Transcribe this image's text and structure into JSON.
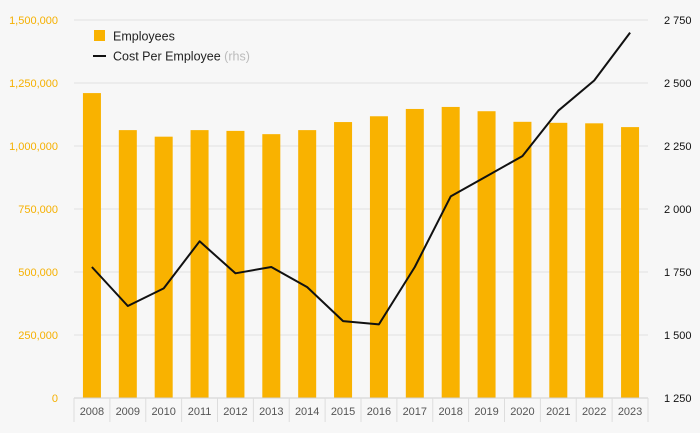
{
  "chart_data": {
    "type": "bar",
    "categories": [
      "2008",
      "2009",
      "2010",
      "2011",
      "2012",
      "2013",
      "2014",
      "2015",
      "2016",
      "2017",
      "2018",
      "2019",
      "2020",
      "2021",
      "2022",
      "2023"
    ],
    "series": [
      {
        "name": "Employees",
        "kind": "bar",
        "axis": "left",
        "color": "#f9b200",
        "values": [
          1210000,
          1063000,
          1037000,
          1063000,
          1060000,
          1047000,
          1063000,
          1095000,
          1118000,
          1147000,
          1155000,
          1138000,
          1096000,
          1092000,
          1090000,
          1075000
        ]
      },
      {
        "name": "Cost Per Employee",
        "kind": "line",
        "axis": "right",
        "color": "#111111",
        "values": [
          1770,
          1615,
          1685,
          1872,
          1745,
          1770,
          1690,
          1555,
          1542,
          1770,
          2050,
          2130,
          2210,
          2390,
          2510,
          2700
        ]
      }
    ],
    "y_left": {
      "ylim": [
        0,
        1500000
      ],
      "ticks": [
        "0",
        "250,000",
        "500,000",
        "750,000",
        "1,000,000",
        "1,250,000",
        "1,500,000"
      ]
    },
    "y_right": {
      "ylim": [
        1250,
        2750
      ],
      "ticks": [
        "1 250",
        "1 500",
        "1 750",
        "2 000",
        "2 250",
        "2 500",
        "2 750"
      ]
    },
    "grid": true,
    "legend": {
      "position": "top-left",
      "items": [
        {
          "label": "Employees",
          "note": "",
          "marker": "square",
          "color": "#f9b200"
        },
        {
          "label": "Cost Per Employee",
          "note": "(rhs)",
          "marker": "line",
          "color": "#111111"
        }
      ]
    }
  }
}
